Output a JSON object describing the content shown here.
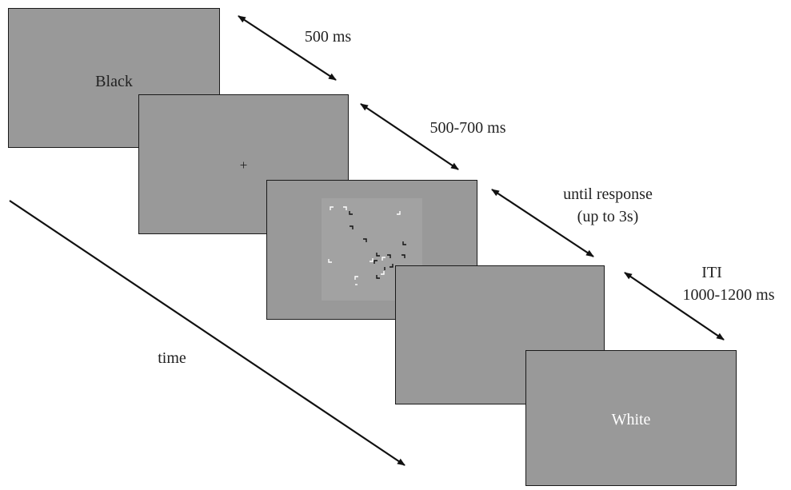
{
  "screens": {
    "s1": {
      "label": "Black",
      "label_color": "#222222"
    },
    "s2": {
      "label": "+",
      "label_color": "#222222"
    },
    "s3": {
      "label": ""
    },
    "s4": {
      "label": ""
    },
    "s5": {
      "label": "White",
      "label_color": "#ffffff"
    }
  },
  "durations": {
    "d1": "500 ms",
    "d2": "500-700 ms",
    "d3": {
      "line1": "until response",
      "line2": "(up to 3s)"
    },
    "d4": {
      "line1": "ITI",
      "line2": "1000-1200 ms"
    }
  },
  "time_label": "time",
  "colors": {
    "screen_fill": "#999999",
    "search_field": "#a2a2a2",
    "white_item": "#ffffff",
    "black_item": "#111111"
  }
}
